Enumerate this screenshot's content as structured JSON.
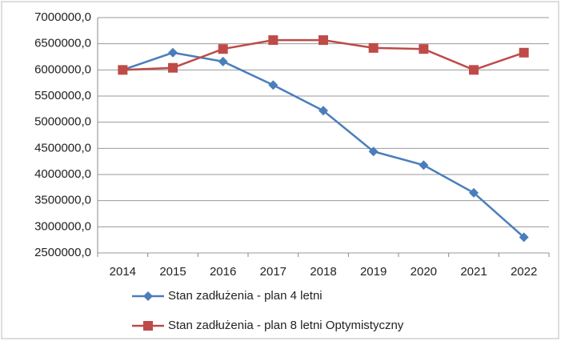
{
  "chart_data": {
    "type": "line",
    "categories": [
      "2014",
      "2015",
      "2016",
      "2017",
      "2018",
      "2019",
      "2020",
      "2021",
      "2022"
    ],
    "series": [
      {
        "name": "Stan zadłużenia  - plan 4 letni",
        "color": "#4a7ebb",
        "marker": "diamond",
        "values": [
          6000000,
          6330000,
          6160000,
          5710000,
          5220000,
          4440000,
          4180000,
          3650000,
          2800000
        ]
      },
      {
        "name": "Stan zadłużenia  - plan 8 letni Optymistyczny",
        "color": "#be4b48",
        "marker": "square",
        "values": [
          6000000,
          6040000,
          6400000,
          6570000,
          6570000,
          6420000,
          6400000,
          6000000,
          6330000
        ]
      }
    ],
    "ylim": [
      2500000,
      7000000
    ],
    "yticks": [
      {
        "value": 2500000,
        "label": "2500000,0"
      },
      {
        "value": 3000000,
        "label": "3000000,0"
      },
      {
        "value": 3500000,
        "label": "3500000,0"
      },
      {
        "value": 4000000,
        "label": "4000000,0"
      },
      {
        "value": 4500000,
        "label": "4500000,0"
      },
      {
        "value": 5000000,
        "label": "5000000,0"
      },
      {
        "value": 5500000,
        "label": "5500000,0"
      },
      {
        "value": 6000000,
        "label": "6000000,0"
      },
      {
        "value": 6500000,
        "label": "6500000,0"
      },
      {
        "value": 7000000,
        "label": "7000000,0"
      }
    ],
    "grid": true,
    "legend": "bottom"
  }
}
